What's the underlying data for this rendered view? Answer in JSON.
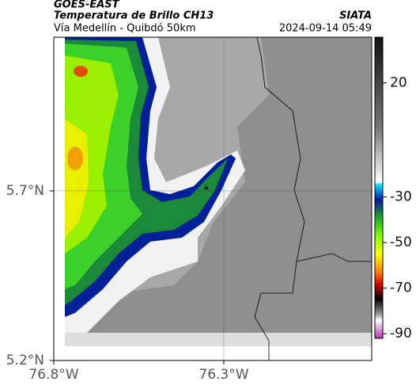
{
  "header": {
    "title": "GOES-EAST",
    "subtitle": "Temperatura de Brillo CH13",
    "source": "SIATA",
    "route": "Vía Medellín - Quibdó 50km",
    "timestamp": "2024-09-14 05:49"
  },
  "map": {
    "xlim": [
      -76.8,
      -75.865
    ],
    "ylim": [
      5.2,
      6.153
    ],
    "xticks": [
      {
        "value": -76.8,
        "label": "76.8°W"
      },
      {
        "value": -76.3,
        "label": "76.3°W"
      }
    ],
    "yticks": [
      {
        "value": 5.2,
        "label": "5.2°N"
      },
      {
        "value": 5.7,
        "label": "5.7°N"
      }
    ]
  },
  "colorbar": {
    "range": [
      -92,
      40
    ],
    "ticks": [
      20,
      -30,
      -50,
      -70,
      -90
    ]
  }
}
